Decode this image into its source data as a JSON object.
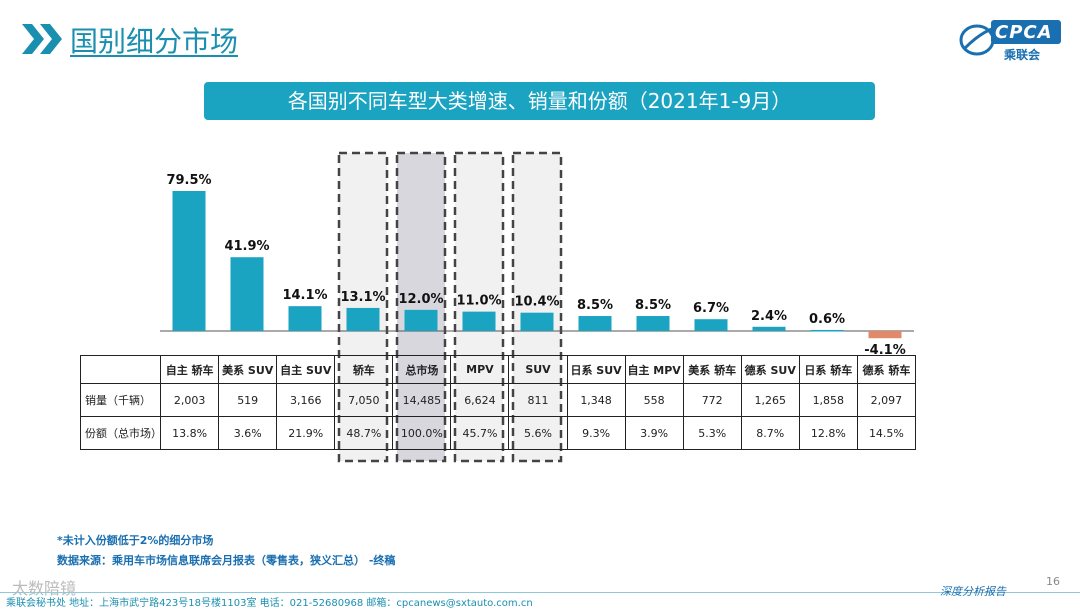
{
  "header": {
    "title": "国别细分市场"
  },
  "logo": {
    "text": "CPCA",
    "sub": "乘联会"
  },
  "chart_data": {
    "type": "bar",
    "title": "各国别不同车型大类增速、销量和份额（2021年1-9月）",
    "categories": [
      "自主 轿车",
      "美系 SUV",
      "自主 SUV",
      "轿车",
      "总市场",
      "MPV",
      "SUV",
      "日系 SUV",
      "自主 MPV",
      "美系 轿车",
      "德系 SUV",
      "日系 轿车",
      "德系 轿车"
    ],
    "values": [
      79.5,
      41.9,
      14.1,
      13.1,
      12.0,
      11.0,
      10.4,
      8.5,
      8.5,
      6.7,
      2.4,
      0.6,
      -4.1
    ],
    "value_labels": [
      "79.5%",
      "41.9%",
      "14.1%",
      "13.1%",
      "12.0%",
      "11.0%",
      "10.4%",
      "8.5%",
      "8.5%",
      "6.7%",
      "2.4%",
      "0.6%",
      "-4.1%"
    ],
    "ylim": [
      -8,
      80
    ],
    "colors": {
      "positive": "#1ba3c2",
      "negative": "#e08a6a",
      "highlight_total": "#d9d7de",
      "highlight": "#f1f1f1"
    },
    "highlighted": [
      3,
      4,
      5,
      6
    ],
    "table": {
      "rows": [
        {
          "label": "销量（千辆）",
          "values": [
            "2,003",
            "519",
            "3,166",
            "7,050",
            "14,485",
            "6,624",
            "811",
            "1,348",
            "558",
            "772",
            "1,265",
            "1,858",
            "2,097"
          ]
        },
        {
          "label": "份额（总市场）",
          "values": [
            "13.8%",
            "3.6%",
            "21.9%",
            "48.7%",
            "100.0%",
            "45.7%",
            "5.6%",
            "9.3%",
            "3.9%",
            "5.3%",
            "8.7%",
            "12.8%",
            "14.5%"
          ]
        }
      ]
    }
  },
  "notes": {
    "line1": "*未计入份额低于2%的细分市场",
    "line2": "数据来源：乘用车市场信息联席会月报表（零售表，狭义汇总）    -终稿"
  },
  "footer": {
    "contact": "乘联会秘书处    地址：上海市武宁路423号18号楼1103室    电话：021-52680968    邮箱：cpcanews@sxtauto.com.cn",
    "label": "深度分析报告",
    "page": "16",
    "watermark": "太数陪镜"
  }
}
